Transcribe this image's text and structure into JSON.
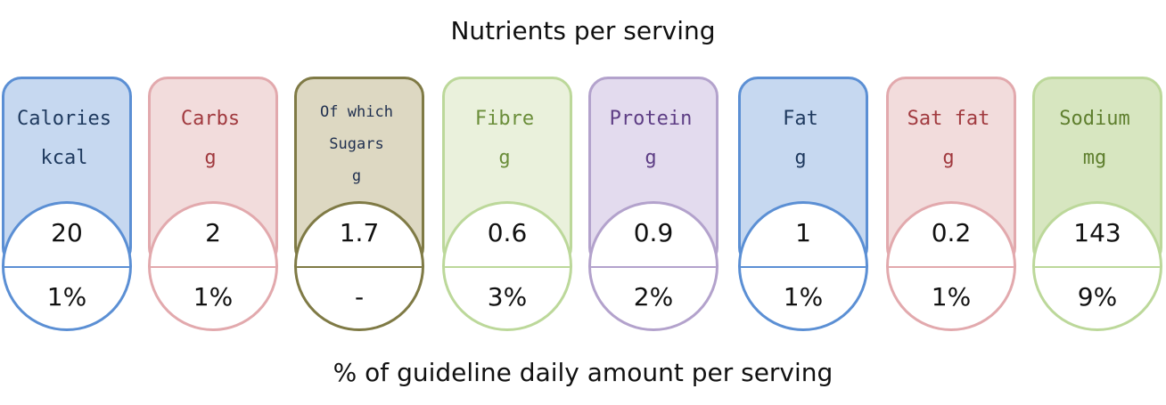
{
  "title": "Nutrients per serving",
  "footer": "% of guideline daily amount per serving",
  "nutrients": [
    {
      "name": "Calories",
      "unit": "kcal",
      "value": "20",
      "percent": "1%",
      "border": "#5b8fd4",
      "fill": "#c6d8f0",
      "text": "#1f3a5f"
    },
    {
      "name": "Carbs",
      "unit": "g",
      "value": "2",
      "percent": "1%",
      "border": "#e2a9ad",
      "fill": "#f2dcdc",
      "text": "#a13a3f"
    },
    {
      "name": "Of which",
      "name2": "Sugars",
      "unit": "g",
      "value": "1.7",
      "percent": "-",
      "border": "#7f7a45",
      "fill": "#ddd8c2",
      "text": "#1f2f4f"
    },
    {
      "name": "Fibre",
      "unit": "g",
      "value": "0.6",
      "percent": "3%",
      "border": "#bcd89a",
      "fill": "#eaf1dc",
      "text": "#6b8e3a"
    },
    {
      "name": "Protein",
      "unit": "g",
      "value": "0.9",
      "percent": "2%",
      "border": "#b3a2cc",
      "fill": "#e3dbee",
      "text": "#5e3e85"
    },
    {
      "name": "Fat",
      "unit": "g",
      "value": "1",
      "percent": "1%",
      "border": "#5b8fd4",
      "fill": "#c6d8f0",
      "text": "#1f3a5f"
    },
    {
      "name": "Sat fat",
      "unit": "g",
      "value": "0.2",
      "percent": "1%",
      "border": "#e2a9ad",
      "fill": "#f2dcdc",
      "text": "#a13a3f"
    },
    {
      "name": "Sodium",
      "unit": "mg",
      "value": "143",
      "percent": "9%",
      "border": "#bcd89a",
      "fill": "#d7e6c0",
      "text": "#5f7f2e"
    }
  ]
}
